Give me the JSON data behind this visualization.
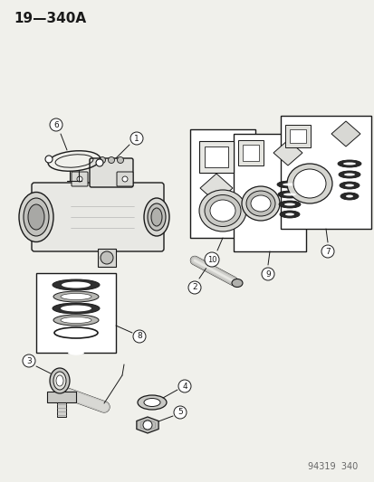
{
  "bg_color": "#f0f0eb",
  "line_color": "#1a1a1a",
  "title": "19—340A",
  "footer": "94319  340",
  "title_fontsize": 11,
  "footer_fontsize": 7,
  "fig_width": 4.14,
  "fig_height": 5.33,
  "dpi": 100
}
